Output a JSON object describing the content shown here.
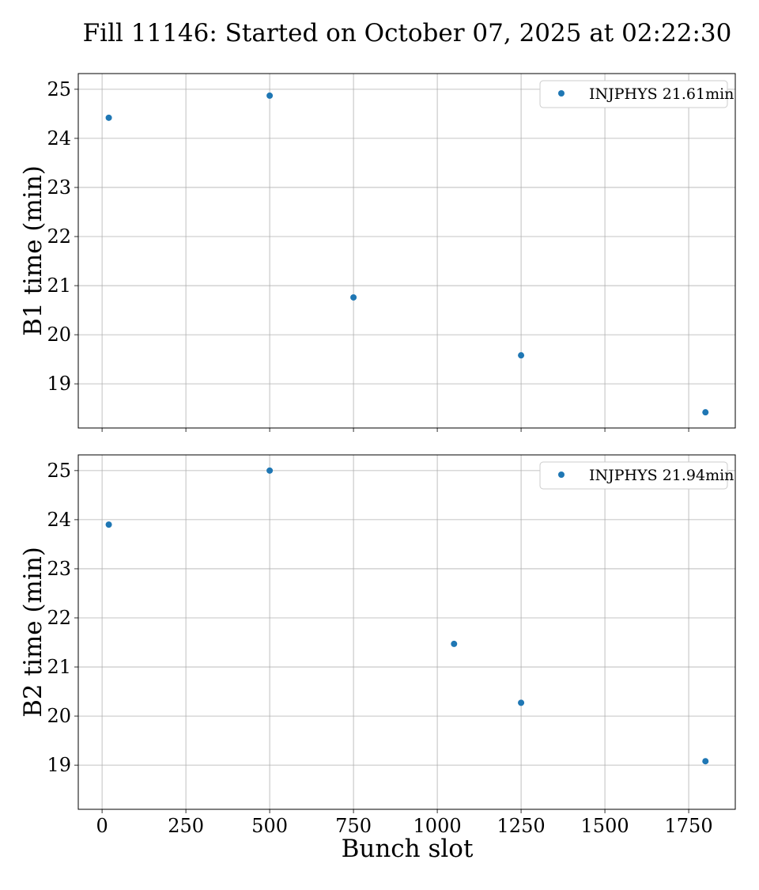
{
  "chart_data": {
    "title": "Fill 11146: Started on October 07, 2025 at 02:22:30",
    "type": "scatter",
    "xlabel": "Bunch slot",
    "xlim": [
      -71,
      1889
    ],
    "xticks": [
      0,
      250,
      500,
      750,
      1000,
      1250,
      1500,
      1750
    ],
    "color": "#1f77b4",
    "grid": true,
    "panels": [
      {
        "ylabel": "B1 time (min)",
        "ylim": [
          18.1,
          25.32
        ],
        "yticks": [
          19,
          20,
          21,
          22,
          23,
          24,
          25
        ],
        "legend": "INJPHYS 21.61min",
        "legend_position": "top-right",
        "x": [
          20,
          500,
          750,
          1250,
          1800
        ],
        "y": [
          24.42,
          24.87,
          20.76,
          19.58,
          18.42
        ]
      },
      {
        "ylabel": "B2 time (min)",
        "ylim": [
          18.1,
          25.32
        ],
        "yticks": [
          19,
          20,
          21,
          22,
          23,
          24,
          25
        ],
        "legend": "INJPHYS 21.94min",
        "legend_position": "top-right",
        "x": [
          20,
          500,
          1050,
          1250,
          1800
        ],
        "y": [
          23.9,
          25.0,
          21.47,
          20.27,
          19.08
        ]
      }
    ]
  }
}
